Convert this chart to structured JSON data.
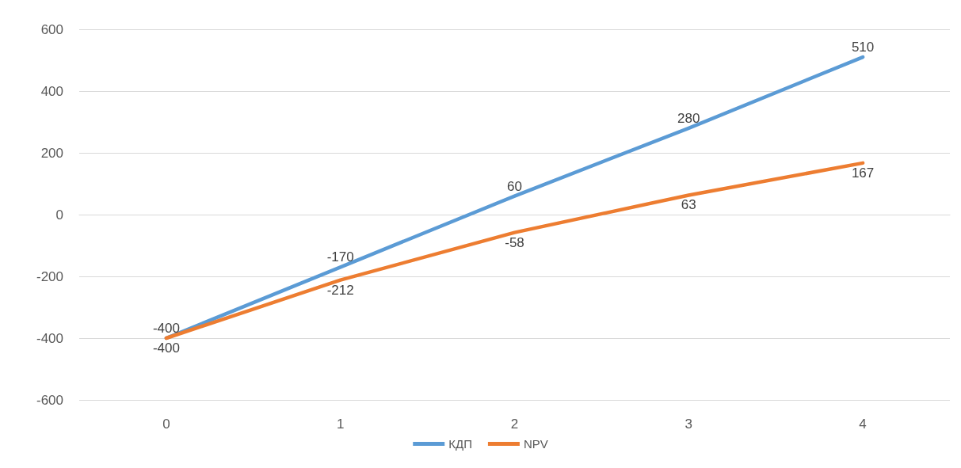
{
  "chart_data": {
    "type": "line",
    "categories": [
      "0",
      "1",
      "2",
      "3",
      "4"
    ],
    "series": [
      {
        "name": "КДП",
        "color": "#5b9bd5",
        "values": [
          -400,
          -170,
          60,
          280,
          510
        ]
      },
      {
        "name": "NPV",
        "color": "#ed7d31",
        "values": [
          -400,
          -212,
          -58,
          63,
          167
        ]
      }
    ],
    "ylim": [
      -600,
      600
    ],
    "yticks": [
      -600,
      -400,
      -200,
      0,
      200,
      400,
      600
    ],
    "grid": "y",
    "legend": "bottom",
    "data_labels": true,
    "marker": "none"
  }
}
